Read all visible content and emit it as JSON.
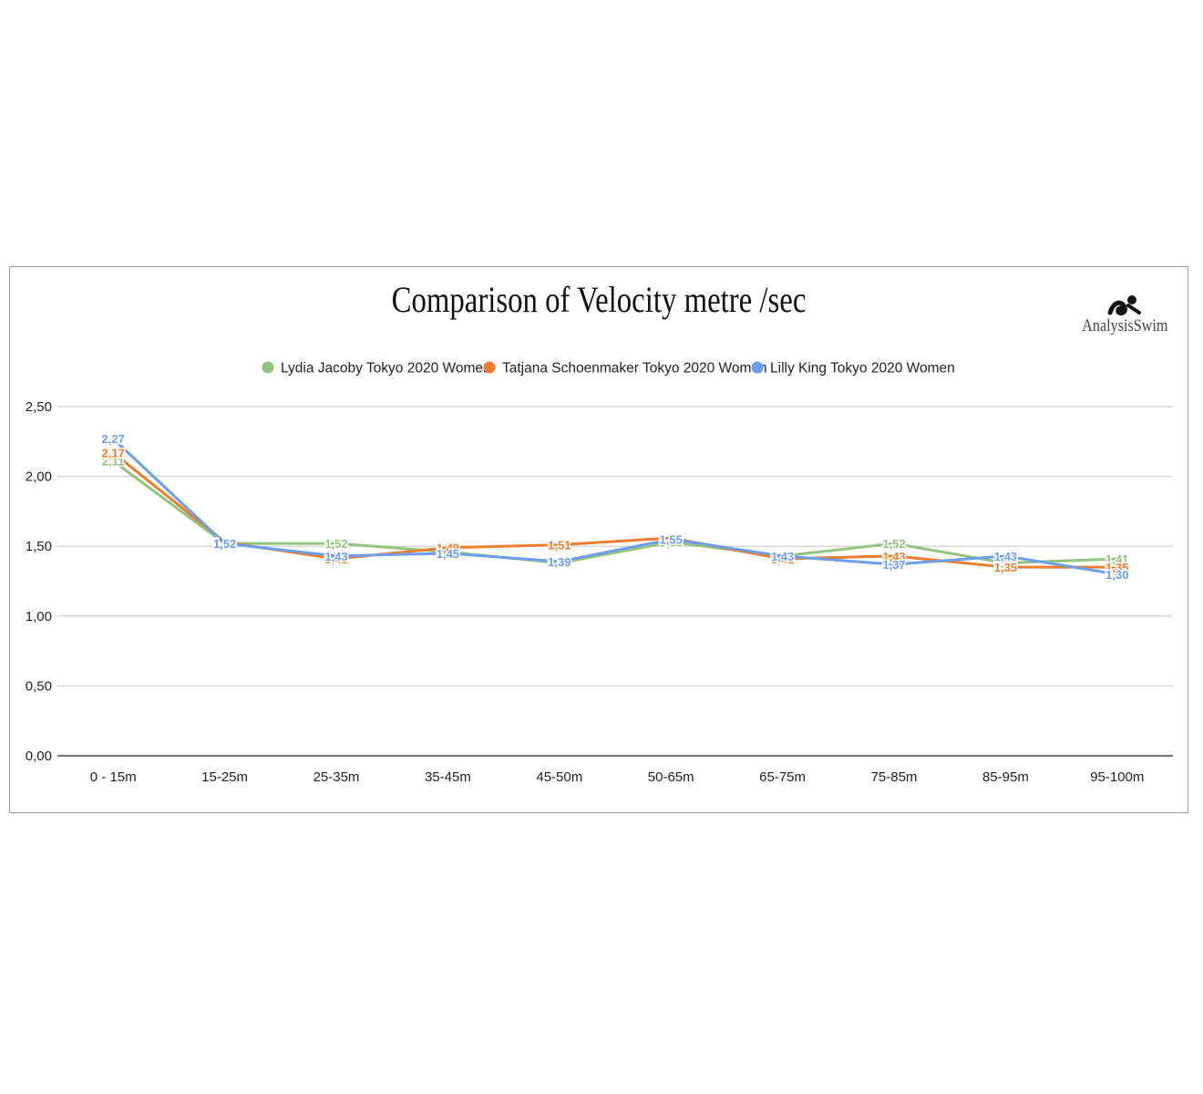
{
  "chart_data": {
    "type": "line",
    "title": "Comparison of Velocity metre /sec",
    "xlabel": "",
    "ylabel": "",
    "ylim": [
      0,
      2.5
    ],
    "yticks": [
      "0,00",
      "0,50",
      "1,00",
      "1,50",
      "2,00",
      "2,50"
    ],
    "ytick_values": [
      0,
      0.5,
      1.0,
      1.5,
      2.0,
      2.5
    ],
    "grid": true,
    "legend_position": "top",
    "categories": [
      "0 - 15m",
      "15-25m",
      "25-35m",
      "35-45m",
      "45-50m",
      "50-65m",
      "65-75m",
      "75-85m",
      "85-95m",
      "95-100m"
    ],
    "series": [
      {
        "name": "Lydia Jacoby Tokyo 2020 Women",
        "color": "#93c47d",
        "values": [
          2.11,
          1.52,
          1.52,
          1.46,
          1.38,
          1.53,
          1.43,
          1.52,
          1.38,
          1.41
        ],
        "labels": [
          "2,11",
          "1,52",
          "1,52",
          "1,46",
          "1,38",
          "1,53",
          "1,43",
          "1,52",
          "1,38",
          "1,41"
        ]
      },
      {
        "name": "Tatjana Schoenmaker Tokyo 2020 Women",
        "color": "#ed7d31",
        "values": [
          2.17,
          1.53,
          1.41,
          1.49,
          1.51,
          1.56,
          1.41,
          1.43,
          1.35,
          1.35
        ],
        "labels": [
          "2,17",
          "1,53",
          "1,41",
          "1,49",
          "1,51",
          "1,56",
          "1,41",
          "1,43",
          "1,35",
          "1,35"
        ]
      },
      {
        "name": "Lilly King Tokyo 2020 Women",
        "color": "#6d9eeb",
        "values": [
          2.27,
          1.52,
          1.43,
          1.45,
          1.39,
          1.55,
          1.43,
          1.37,
          1.43,
          1.3
        ],
        "labels": [
          "2,27",
          "1,52",
          "1,43",
          "1,45",
          "1,39",
          "1,55",
          "1,43",
          "1,37",
          "1,43",
          "1,30"
        ]
      }
    ]
  },
  "brand": {
    "name": "AnalysisSwim",
    "icon": "swimmer-icon"
  },
  "colors": {
    "grid": "#d9d9d9",
    "axis": "#757575",
    "frame": "#9e9e9e"
  }
}
